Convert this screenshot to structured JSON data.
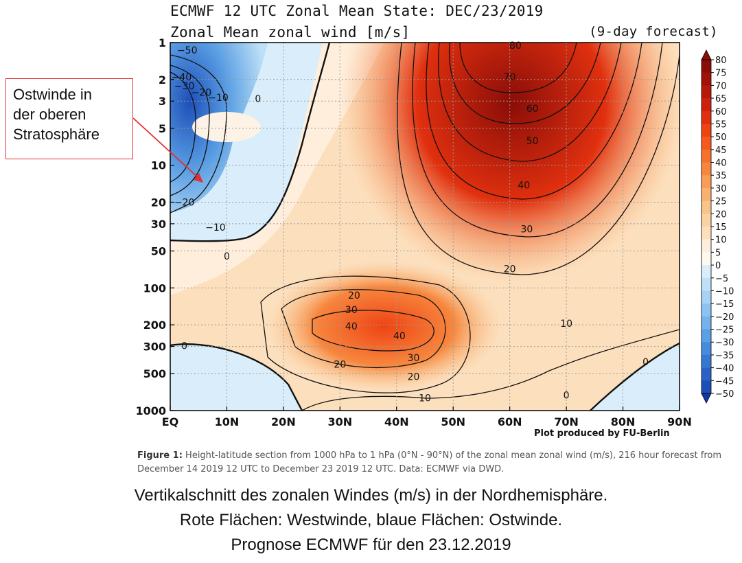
{
  "header": {
    "title": "ECMWF 12 UTC Zonal Mean State: DEC/23/2019",
    "subtitle": "Zonal Mean zonal wind [m/s]",
    "forecast_note": "(9-day forecast)"
  },
  "callout": {
    "lines": [
      "Ostwinde in",
      "der oberen",
      "Stratosphäre"
    ]
  },
  "credit": "Plot produced by FU-Berlin",
  "figure_caption": {
    "label": "Figure 1:",
    "text": "Height-latitude section from 1000 hPa to 1 hPa (0°N - 90°N) of the zonal mean zonal wind (m/s), 216 hour forecast from December 14 2019 12 UTC to December 23 2019 12 UTC. Data: ECMWF via DWD."
  },
  "german_caption": [
    "Vertikalschnitt des zonalen Windes (m/s) in der Nordhemisphäre.",
    "Rote Flächen: Westwinde, blaue Flächen: Ostwinde.",
    "Prognose ECMWF für den 23.12.2019"
  ],
  "chart_data": {
    "type": "heatmap",
    "title": "ECMWF 12 UTC Zonal Mean State: DEC/23/2019",
    "subtitle": "Zonal Mean zonal wind [m/s]",
    "x_ticks": [
      "EQ",
      "10N",
      "20N",
      "30N",
      "40N",
      "50N",
      "60N",
      "70N",
      "80N",
      "90N"
    ],
    "x_values": [
      0,
      10,
      20,
      30,
      40,
      50,
      60,
      70,
      80,
      90
    ],
    "y_ticks": [
      "1",
      "2",
      "3",
      "5",
      "10",
      "20",
      "30",
      "50",
      "100",
      "200",
      "300",
      "500",
      "1000"
    ],
    "y_values": [
      1,
      2,
      3,
      5,
      10,
      20,
      30,
      50,
      100,
      200,
      300,
      500,
      1000
    ],
    "y_scale": "log",
    "y_inverted": true,
    "xlim": [
      0,
      90
    ],
    "ylim": [
      1000,
      1
    ],
    "grid": true,
    "colorbar": {
      "levels": [
        80,
        75,
        70,
        65,
        60,
        55,
        50,
        45,
        40,
        35,
        30,
        25,
        20,
        15,
        10,
        5,
        0,
        -5,
        -10,
        -15,
        -20,
        -25,
        -30,
        -35,
        -40,
        -45,
        -50
      ],
      "labels": [
        "80",
        "75",
        "70",
        "65",
        "60",
        "55",
        "50",
        "45",
        "40",
        "35",
        "30",
        "25",
        "20",
        "15",
        "10",
        "5",
        "0",
        "−5",
        "−10",
        "−15",
        "−20",
        "−25",
        "−30",
        "−35",
        "−40",
        "−45",
        "−50"
      ],
      "colors": [
        "#8a0d08",
        "#a01208",
        "#b8180a",
        "#cc210c",
        "#e0300f",
        "#ee4414",
        "#f45a1e",
        "#f6712b",
        "#f7873e",
        "#f89c56",
        "#f9b170",
        "#fac38a",
        "#fbd2a4",
        "#fcdfbd",
        "#feeedb",
        "#fff8ee",
        "#d9eefa",
        "#bfe1f7",
        "#a6d3f3",
        "#8dc3ef",
        "#73b2ea",
        "#5b9fe4",
        "#478cdc",
        "#3778d2",
        "#2963c6",
        "#1d4fb8",
        "#1139a6"
      ],
      "position": "right"
    },
    "contour_labels": [
      {
        "lat": 3,
        "p": 1.15,
        "value": "-50"
      },
      {
        "lat": 2,
        "p": 1.9,
        "value": "-40"
      },
      {
        "lat": 2.5,
        "p": 2.25,
        "value": "-30"
      },
      {
        "lat": 5.5,
        "p": 2.55,
        "value": "-20"
      },
      {
        "lat": 8.5,
        "p": 2.8,
        "value": "-10"
      },
      {
        "lat": 15.5,
        "p": 2.85,
        "value": "0"
      },
      {
        "lat": 2.5,
        "p": 20,
        "value": "-20"
      },
      {
        "lat": 8,
        "p": 32,
        "value": "-10"
      },
      {
        "lat": 10,
        "p": 55,
        "value": "0"
      },
      {
        "lat": 61,
        "p": 1.05,
        "value": "80"
      },
      {
        "lat": 60,
        "p": 1.9,
        "value": "70"
      },
      {
        "lat": 64,
        "p": 3.45,
        "value": "60"
      },
      {
        "lat": 64,
        "p": 6.3,
        "value": "50"
      },
      {
        "lat": 62.5,
        "p": 14.5,
        "value": "40"
      },
      {
        "lat": 63,
        "p": 33,
        "value": "30"
      },
      {
        "lat": 60,
        "p": 70,
        "value": "20"
      },
      {
        "lat": 70,
        "p": 195,
        "value": "10"
      },
      {
        "lat": 32,
        "p": 150,
        "value": "30"
      },
      {
        "lat": 32.5,
        "p": 115,
        "value": "20"
      },
      {
        "lat": 32,
        "p": 205,
        "value": "40"
      },
      {
        "lat": 40.5,
        "p": 245,
        "value": "40"
      },
      {
        "lat": 43,
        "p": 370,
        "value": "30"
      },
      {
        "lat": 43,
        "p": 530,
        "value": "20"
      },
      {
        "lat": 45,
        "p": 790,
        "value": "10"
      },
      {
        "lat": 30,
        "p": 420,
        "value": "20"
      },
      {
        "lat": 2.5,
        "p": 295,
        "value": "0"
      },
      {
        "lat": 70,
        "p": 750,
        "value": "0"
      },
      {
        "lat": 84,
        "p": 400,
        "value": "0"
      }
    ]
  }
}
